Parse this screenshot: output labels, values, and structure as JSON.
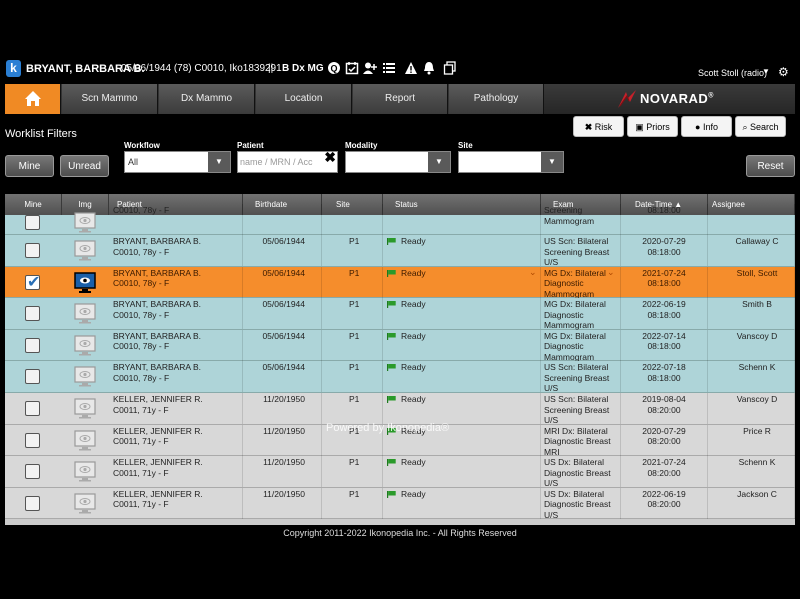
{
  "topbar": {
    "logo": "k",
    "patient_name": "BRYANT, BARBARA B.",
    "patient_info": "05/06/1944 (78) C0010, Iko1839291",
    "separator": "||",
    "study": "B Dx MG",
    "icons": [
      "quantify-icon",
      "calendar-check-icon",
      "add-user-icon",
      "list-icon",
      "warning-icon",
      "bell-icon",
      "copy-icon"
    ],
    "user": "Scott Stoll (radio)",
    "user_caret": "▼",
    "settings_icon": "gear-icon"
  },
  "nav": {
    "home_icon": "home-icon",
    "tabs": [
      "Scn Mammo",
      "Dx Mammo",
      "Location",
      "Report",
      "Pathology"
    ],
    "brand": "NOVARAD",
    "brand_trademark": "®"
  },
  "filters": {
    "title": "Worklist Filters",
    "workflow_label": "Workflow",
    "workflow_value": "All",
    "patient_label": "Patient",
    "patient_placeholder": "name / MRN / Acc",
    "modality_label": "Modality",
    "modality_value": "",
    "site_label": "Site",
    "site_value": "",
    "mine_button": "Mine",
    "unread_button": "Unread",
    "reset_button": "Reset",
    "risk_button": "Risk",
    "priors_button": "Priors",
    "info_button": "Info",
    "search_button": "Search"
  },
  "table": {
    "headers": [
      "Mine",
      "Img",
      "Patient",
      "Birthdate",
      "Site",
      "Status",
      "Exam",
      "Date-Time ▲",
      "Assignee"
    ],
    "rows": [
      {
        "mine": false,
        "patient1": "",
        "patient2": "C0010, 78y - F",
        "birthdate": "",
        "site": "",
        "status": "",
        "exam1": "Screening",
        "exam2": "Mammogram",
        "exam3": "",
        "date": "",
        "time": "08:18:00",
        "assignee": "",
        "style": "teal"
      },
      {
        "mine": false,
        "patient1": "BRYANT, BARBARA B.",
        "patient2": "C0010, 78y - F",
        "birthdate": "05/06/1944",
        "site": "P1",
        "status": "Ready",
        "exam1": "US Scn: Bilateral",
        "exam2": "Screening Breast",
        "exam3": "U/S",
        "date": "2020-07-29",
        "time": "08:18:00",
        "assignee": "Callaway C",
        "style": "teal"
      },
      {
        "mine": true,
        "patient1": "BRYANT, BARBARA B.",
        "patient2": "C0010, 78y - F",
        "birthdate": "05/06/1944",
        "site": "P1",
        "status": "Ready",
        "exam1": "MG Dx: Bilateral",
        "exam2": "Diagnostic",
        "exam3": "Mammogram",
        "date": "2021-07-24",
        "time": "08:18:00",
        "assignee": "Stoll, Scott",
        "style": "orange"
      },
      {
        "mine": false,
        "patient1": "BRYANT, BARBARA B.",
        "patient2": "C0010, 78y - F",
        "birthdate": "05/06/1944",
        "site": "P1",
        "status": "Ready",
        "exam1": "MG Dx: Bilateral",
        "exam2": "Diagnostic",
        "exam3": "Mammogram",
        "date": "2022-06-19",
        "time": "08:18:00",
        "assignee": "Smith B",
        "style": "teal"
      },
      {
        "mine": false,
        "patient1": "BRYANT, BARBARA B.",
        "patient2": "C0010, 78y - F",
        "birthdate": "05/06/1944",
        "site": "P1",
        "status": "Ready",
        "exam1": "MG Dx: Bilateral",
        "exam2": "Diagnostic",
        "exam3": "Mammogram",
        "date": "2022-07-14",
        "time": "08:18:00",
        "assignee": "Vanscoy D",
        "style": "teal"
      },
      {
        "mine": false,
        "patient1": "BRYANT, BARBARA B.",
        "patient2": "C0010, 78y - F",
        "birthdate": "05/06/1944",
        "site": "P1",
        "status": "Ready",
        "exam1": "US Scn: Bilateral",
        "exam2": "Screening Breast",
        "exam3": "U/S",
        "date": "2022-07-18",
        "time": "08:18:00",
        "assignee": "Schenn K",
        "style": "teal"
      },
      {
        "mine": false,
        "patient1": "KELLER, JENNIFER R.",
        "patient2": "C0011, 71y - F",
        "birthdate": "11/20/1950",
        "site": "P1",
        "status": "Ready",
        "exam1": "US Scn: Bilateral",
        "exam2": "Screening Breast",
        "exam3": "U/S",
        "date": "2019-08-04",
        "time": "08:20:00",
        "assignee": "Vanscoy D",
        "style": "gray"
      },
      {
        "mine": false,
        "patient1": "KELLER, JENNIFER R.",
        "patient2": "C0011, 71y - F",
        "birthdate": "11/20/1950",
        "site": "P1",
        "status": "Ready",
        "exam1": "MRI Dx: Bilateral",
        "exam2": "Diagnostic Breast",
        "exam3": "MRI",
        "date": "2020-07-29",
        "time": "08:20:00",
        "assignee": "Price R",
        "style": "gray"
      },
      {
        "mine": false,
        "patient1": "KELLER, JENNIFER R.",
        "patient2": "C0011, 71y - F",
        "birthdate": "11/20/1950",
        "site": "P1",
        "status": "Ready",
        "exam1": "US Dx: Bilateral",
        "exam2": "Diagnostic Breast",
        "exam3": "U/S",
        "date": "2021-07-24",
        "time": "08:20:00",
        "assignee": "Schenn K",
        "style": "gray"
      },
      {
        "mine": false,
        "patient1": "KELLER, JENNIFER R.",
        "patient2": "C0011, 71y - F",
        "birthdate": "11/20/1950",
        "site": "P1",
        "status": "Ready",
        "exam1": "US Dx: Bilateral",
        "exam2": "Diagnostic Breast",
        "exam3": "U/S",
        "date": "2022-06-19",
        "time": "08:20:00",
        "assignee": "Jackson C",
        "style": "gray"
      }
    ]
  },
  "watermark": "Powered by Ikonopedia®",
  "footer": "Copyright 2011-2022 Ikonopedia Inc. - All Rights Reserved",
  "colors": {
    "accent": "#f58d2c",
    "row_teal": "#aed4d8",
    "row_gray": "#d8d8d8",
    "flag_green": "#2a9a2a",
    "brand_red": "#c8202a"
  }
}
